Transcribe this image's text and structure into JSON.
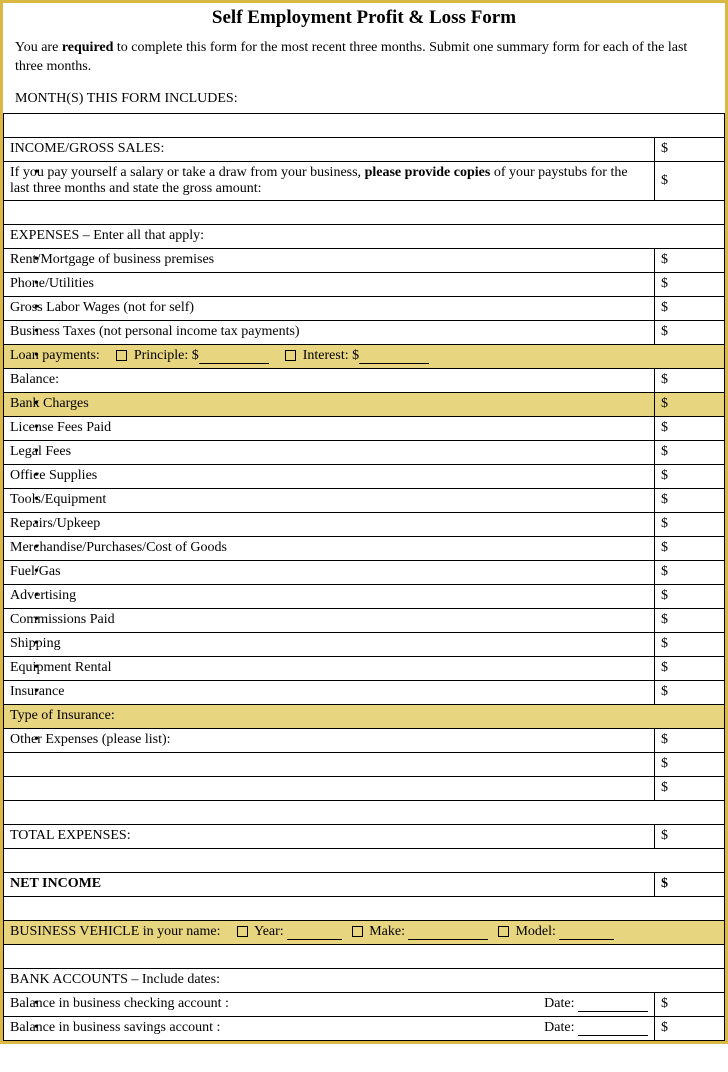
{
  "title": "Self Employment Profit & Loss Form",
  "intro_pre": "You are ",
  "intro_bold": "required",
  "intro_post": " to complete this form for the most recent three months. Submit one summary form for each of the last three months.",
  "months_label": "MONTH(S) THIS FORM INCLUDES:",
  "currency": "$",
  "income": {
    "header": "INCOME/GROSS SALES:",
    "note_pre": "If you pay yourself a salary or take a draw from your business, ",
    "note_bold": "please provide copies",
    "note_post": " of your paystubs for the last three months and state the gross amount:"
  },
  "expenses_header": "EXPENSES – Enter all that apply:",
  "exp": {
    "rent": "Rent/Mortgage of business premises",
    "phone": "Phone/Utilities",
    "labor": "Gross Labor Wages (not for self)",
    "taxes": "Business Taxes (not personal income tax payments)",
    "loan_label": "Loan payments:",
    "loan_principle": "Principle: $",
    "loan_interest": "Interest: $",
    "balance": "Balance:",
    "bank": "Bank Charges",
    "license": "License Fees Paid",
    "legal": "Legal Fees",
    "office": "Office Supplies",
    "tools": "Tools/Equipment",
    "repairs": "Repairs/Upkeep",
    "merch": "Merchandise/Purchases/Cost of Goods",
    "fuel": "Fuel/Gas",
    "adv": "Advertising",
    "comm": "Commissions Paid",
    "ship": "Shipping",
    "equip": "Equipment Rental",
    "ins": "Insurance",
    "ins_type": "Type of Insurance:",
    "other": "Other Expenses (please list):"
  },
  "total_expenses": "TOTAL EXPENSES:",
  "net_income": "NET INCOME",
  "vehicle": {
    "label": "BUSINESS VEHICLE in your name:",
    "year": "Year:",
    "make": "Make:",
    "model": "Model:"
  },
  "bank": {
    "header": "BANK ACCOUNTS – Include dates:",
    "checking": "Balance in business checking account :",
    "savings": "Balance in business savings account :",
    "date": "Date:"
  },
  "colors": {
    "border": "#d9b843",
    "highlight": "#e8d580",
    "text": "#000000",
    "background": "#ffffff"
  }
}
